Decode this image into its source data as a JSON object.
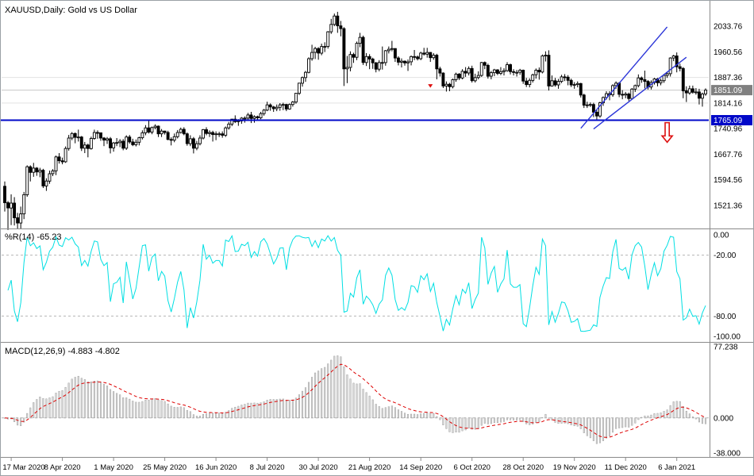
{
  "colors": {
    "background": "#ffffff",
    "border": "#9aa0a6",
    "text": "#000000",
    "separator": "#8a8a8a",
    "grid": "#e2e2e2",
    "current_price_line": "#c8c8c8",
    "candle": "#000000",
    "candle_up_fill": "#ffffff",
    "candle_down_fill": "#000000",
    "wpr_line": "#00dfe3",
    "level_dash": "#b4b4b4",
    "macd_hist_fill": "#d9d9d9",
    "macd_hist_stroke": "#9e9e9e",
    "macd_signal": "#dd0000",
    "object_blue": "#2b35d8",
    "hline_blue": "#0008c8",
    "price_tag_bg": "#808080",
    "price_tag_text": "#ffffff",
    "hline_tag_bg": "#0008c8",
    "arrow_red": "#dd1111"
  },
  "panels": {
    "price": {
      "title": "XAUUSD,Daily: Gold vs US Dollar",
      "axis_labels": [
        "2033.76",
        "1960.56",
        "1887.36",
        "1814.16",
        "1740.96",
        "1667.76",
        "1594.56",
        "1521.36"
      ],
      "current_price_label": "1851.09",
      "hline_label": "1765.09",
      "gridline_prices": [
        1887.36,
        1814.16
      ],
      "scale": {
        "min": 1457.6,
        "max": 2095.3
      }
    },
    "wpr": {
      "title": "%R(14) -65.23",
      "axis_labels": [
        "0.00",
        "-20.00",
        "-80.00",
        "-100.00"
      ],
      "levels": [
        -20,
        -80
      ],
      "scale": {
        "min": -100,
        "max": 0
      }
    },
    "macd": {
      "title": "MACD(12,26,9) -4.883 -4.802",
      "axis_labels": [
        "77.238",
        "0.000",
        "-38.000"
      ],
      "scale": {
        "min": -38.0,
        "max": 77.238
      }
    }
  },
  "time_axis": {
    "labels": [
      "17 Mar 2020",
      "8 Apr 2020",
      "1 May 2020",
      "25 May 2020",
      "16 Jun 2020",
      "8 Jul 2020",
      "30 Jul 2020",
      "21 Aug 2020",
      "14 Sep 2020",
      "6 Oct 2020",
      "28 Oct 2020",
      "19 Nov 2020",
      "11 Dec 2020",
      "6 Jan 2021"
    ],
    "label_indices": [
      2,
      18,
      34,
      50,
      66,
      82,
      98,
      114,
      130,
      146,
      162,
      178,
      194,
      210
    ]
  },
  "chart_data": {
    "type": "candlestick",
    "symbol": "XAUUSD",
    "timeframe": "Daily",
    "description": "Gold vs US Dollar",
    "ylim": [
      1457.6,
      2095.3
    ],
    "indicators": [
      {
        "name": "Williams %R",
        "period": 14,
        "current": -65.23,
        "range": [
          0,
          -100
        ],
        "levels": [
          -20,
          -80
        ]
      },
      {
        "name": "MACD",
        "params": [
          12,
          26,
          9
        ],
        "current_macd": -4.883,
        "current_signal": -4.802,
        "range": [
          77.238,
          -38.0
        ]
      }
    ],
    "candles_ohlc": [
      [
        1576,
        1590,
        1504,
        1529
      ],
      [
        1529,
        1534,
        1451,
        1514
      ],
      [
        1514,
        1553,
        1465,
        1528
      ],
      [
        1528,
        1545,
        1464,
        1486
      ],
      [
        1486,
        1500,
        1455,
        1471
      ],
      [
        1471,
        1518,
        1454,
        1497
      ],
      [
        1497,
        1560,
        1482,
        1552
      ],
      [
        1552,
        1636,
        1546,
        1632
      ],
      [
        1632,
        1636,
        1590,
        1616
      ],
      [
        1616,
        1643,
        1603,
        1628
      ],
      [
        1628,
        1631,
        1606,
        1617
      ],
      [
        1617,
        1629,
        1602,
        1622
      ],
      [
        1622,
        1626,
        1571,
        1577
      ],
      [
        1577,
        1599,
        1563,
        1591
      ],
      [
        1591,
        1621,
        1583,
        1612
      ],
      [
        1612,
        1625,
        1605,
        1620
      ],
      [
        1620,
        1664,
        1608,
        1660
      ],
      [
        1660,
        1671,
        1641,
        1649
      ],
      [
        1649,
        1658,
        1639,
        1646
      ],
      [
        1646,
        1690,
        1643,
        1684
      ],
      [
        1684,
        1723,
        1678,
        1714
      ],
      [
        1714,
        1731,
        1708,
        1727
      ],
      [
        1727,
        1730,
        1699,
        1716
      ],
      [
        1716,
        1738,
        1704,
        1717
      ],
      [
        1717,
        1720,
        1677,
        1685
      ],
      [
        1685,
        1703,
        1671,
        1694
      ],
      [
        1694,
        1698,
        1659,
        1684
      ],
      [
        1684,
        1718,
        1681,
        1713
      ],
      [
        1713,
        1738,
        1709,
        1730
      ],
      [
        1730,
        1736,
        1712,
        1729
      ],
      [
        1729,
        1730,
        1706,
        1714
      ],
      [
        1714,
        1717,
        1691,
        1708
      ],
      [
        1708,
        1717,
        1697,
        1712
      ],
      [
        1712,
        1717,
        1670,
        1686
      ],
      [
        1686,
        1703,
        1675,
        1700
      ],
      [
        1700,
        1714,
        1691,
        1701
      ],
      [
        1701,
        1711,
        1688,
        1705
      ],
      [
        1705,
        1711,
        1679,
        1685
      ],
      [
        1685,
        1722,
        1680,
        1717
      ],
      [
        1717,
        1723,
        1698,
        1703
      ],
      [
        1703,
        1712,
        1691,
        1695
      ],
      [
        1695,
        1710,
        1690,
        1702
      ],
      [
        1702,
        1718,
        1693,
        1715
      ],
      [
        1715,
        1736,
        1710,
        1729
      ],
      [
        1729,
        1751,
        1722,
        1743
      ],
      [
        1743,
        1765,
        1727,
        1731
      ],
      [
        1731,
        1747,
        1725,
        1744
      ],
      [
        1744,
        1753,
        1739,
        1748
      ],
      [
        1748,
        1750,
        1717,
        1726
      ],
      [
        1726,
        1740,
        1717,
        1734
      ],
      [
        1734,
        1735,
        1724,
        1730
      ],
      [
        1730,
        1735,
        1708,
        1710
      ],
      [
        1710,
        1716,
        1693,
        1708
      ],
      [
        1708,
        1727,
        1702,
        1718
      ],
      [
        1718,
        1737,
        1713,
        1730
      ],
      [
        1730,
        1744,
        1727,
        1739
      ],
      [
        1739,
        1745,
        1722,
        1726
      ],
      [
        1726,
        1730,
        1692,
        1698
      ],
      [
        1698,
        1722,
        1691,
        1712
      ],
      [
        1712,
        1717,
        1670,
        1685
      ],
      [
        1685,
        1706,
        1679,
        1698
      ],
      [
        1698,
        1722,
        1693,
        1714
      ],
      [
        1714,
        1740,
        1710,
        1738
      ],
      [
        1738,
        1745,
        1722,
        1727
      ],
      [
        1727,
        1736,
        1717,
        1730
      ],
      [
        1730,
        1735,
        1704,
        1724
      ],
      [
        1724,
        1733,
        1708,
        1726
      ],
      [
        1726,
        1732,
        1717,
        1726
      ],
      [
        1726,
        1733,
        1715,
        1722
      ],
      [
        1722,
        1747,
        1717,
        1743
      ],
      [
        1743,
        1760,
        1738,
        1754
      ],
      [
        1754,
        1769,
        1748,
        1768
      ],
      [
        1768,
        1779,
        1757,
        1761
      ],
      [
        1761,
        1768,
        1749,
        1763
      ],
      [
        1763,
        1774,
        1755,
        1771
      ],
      [
        1771,
        1776,
        1758,
        1771
      ],
      [
        1771,
        1786,
        1766,
        1780
      ],
      [
        1780,
        1789,
        1757,
        1770
      ],
      [
        1770,
        1779,
        1758,
        1775
      ],
      [
        1775,
        1778,
        1767,
        1772
      ],
      [
        1772,
        1789,
        1768,
        1784
      ],
      [
        1784,
        1797,
        1778,
        1794
      ],
      [
        1794,
        1818,
        1791,
        1809
      ],
      [
        1809,
        1813,
        1792,
        1803
      ],
      [
        1803,
        1806,
        1789,
        1798
      ],
      [
        1798,
        1810,
        1791,
        1802
      ],
      [
        1802,
        1814,
        1792,
        1809
      ],
      [
        1809,
        1815,
        1794,
        1810
      ],
      [
        1810,
        1812,
        1791,
        1797
      ],
      [
        1797,
        1813,
        1795,
        1810
      ],
      [
        1810,
        1820,
        1804,
        1817
      ],
      [
        1817,
        1843,
        1812,
        1842
      ],
      [
        1842,
        1872,
        1837,
        1871
      ],
      [
        1871,
        1890,
        1861,
        1887
      ],
      [
        1887,
        1906,
        1875,
        1902
      ],
      [
        1902,
        1945,
        1899,
        1941
      ],
      [
        1941,
        1981,
        1935,
        1959
      ],
      [
        1959,
        1975,
        1940,
        1970
      ],
      [
        1970,
        1974,
        1938,
        1957
      ],
      [
        1957,
        1984,
        1951,
        1976
      ],
      [
        1976,
        1988,
        1960,
        1976
      ],
      [
        1976,
        2020,
        1970,
        2018
      ],
      [
        2018,
        2055,
        2012,
        2039
      ],
      [
        2039,
        2070,
        2034,
        2063
      ],
      [
        2063,
        2075,
        2015,
        2035
      ],
      [
        2035,
        2049,
        2005,
        2027
      ],
      [
        2027,
        2031,
        1863,
        1912
      ],
      [
        1912,
        1949,
        1871,
        1916
      ],
      [
        1916,
        1962,
        1905,
        1953
      ],
      [
        1953,
        1958,
        1929,
        1945
      ],
      [
        1945,
        1990,
        1937,
        1985
      ],
      [
        1985,
        2015,
        1974,
        2002
      ],
      [
        2002,
        2007,
        1923,
        1930
      ],
      [
        1930,
        1957,
        1920,
        1947
      ],
      [
        1947,
        1954,
        1911,
        1940
      ],
      [
        1940,
        1944,
        1912,
        1929
      ],
      [
        1929,
        1932,
        1902,
        1911
      ],
      [
        1911,
        1937,
        1905,
        1930
      ],
      [
        1930,
        1976,
        1910,
        1930
      ],
      [
        1930,
        1966,
        1921,
        1964
      ],
      [
        1964,
        1976,
        1956,
        1968
      ],
      [
        1968,
        1992,
        1962,
        1970
      ],
      [
        1970,
        1971,
        1932,
        1943
      ],
      [
        1943,
        1948,
        1922,
        1931
      ],
      [
        1931,
        1942,
        1916,
        1934
      ],
      [
        1934,
        1936,
        1921,
        1929
      ],
      [
        1929,
        1939,
        1906,
        1932
      ],
      [
        1932,
        1950,
        1922,
        1947
      ],
      [
        1947,
        1966,
        1937,
        1946
      ],
      [
        1946,
        1950,
        1936,
        1941
      ],
      [
        1941,
        1961,
        1937,
        1957
      ],
      [
        1957,
        1972,
        1950,
        1954
      ],
      [
        1954,
        1972,
        1944,
        1959
      ],
      [
        1959,
        1960,
        1932,
        1944
      ],
      [
        1944,
        1957,
        1938,
        1951
      ],
      [
        1951,
        1955,
        1882,
        1912
      ],
      [
        1912,
        1918,
        1890,
        1900
      ],
      [
        1900,
        1902,
        1857,
        1863
      ],
      [
        1863,
        1876,
        1847,
        1868
      ],
      [
        1868,
        1872,
        1848,
        1861
      ],
      [
        1861,
        1884,
        1856,
        1881
      ],
      [
        1881,
        1901,
        1875,
        1897
      ],
      [
        1897,
        1900,
        1880,
        1886
      ],
      [
        1886,
        1911,
        1882,
        1905
      ],
      [
        1905,
        1917,
        1889,
        1900
      ],
      [
        1900,
        1919,
        1893,
        1913
      ],
      [
        1913,
        1921,
        1873,
        1878
      ],
      [
        1878,
        1898,
        1873,
        1887
      ],
      [
        1887,
        1905,
        1882,
        1893
      ],
      [
        1893,
        1932,
        1889,
        1930
      ],
      [
        1930,
        1933,
        1911,
        1922
      ],
      [
        1922,
        1927,
        1884,
        1891
      ],
      [
        1891,
        1906,
        1882,
        1901
      ],
      [
        1901,
        1912,
        1891,
        1909
      ],
      [
        1909,
        1911,
        1894,
        1899
      ],
      [
        1899,
        1917,
        1894,
        1904
      ],
      [
        1904,
        1914,
        1893,
        1907
      ],
      [
        1907,
        1931,
        1903,
        1924
      ],
      [
        1924,
        1927,
        1896,
        1904
      ],
      [
        1904,
        1911,
        1893,
        1902
      ],
      [
        1902,
        1909,
        1890,
        1902
      ],
      [
        1902,
        1912,
        1895,
        1908
      ],
      [
        1908,
        1910,
        1869,
        1877
      ],
      [
        1877,
        1886,
        1860,
        1867
      ],
      [
        1867,
        1885,
        1859,
        1879
      ],
      [
        1879,
        1898,
        1873,
        1895
      ],
      [
        1895,
        1913,
        1884,
        1908
      ],
      [
        1908,
        1916,
        1881,
        1903
      ],
      [
        1903,
        1953,
        1899,
        1949
      ],
      [
        1949,
        1962,
        1933,
        1951
      ],
      [
        1951,
        1965,
        1850,
        1863
      ],
      [
        1863,
        1893,
        1861,
        1878
      ],
      [
        1878,
        1886,
        1861,
        1866
      ],
      [
        1866,
        1883,
        1855,
        1876
      ],
      [
        1876,
        1895,
        1871,
        1889
      ],
      [
        1889,
        1897,
        1877,
        1888
      ],
      [
        1888,
        1894,
        1865,
        1879
      ],
      [
        1879,
        1884,
        1860,
        1866
      ],
      [
        1866,
        1874,
        1855,
        1867
      ],
      [
        1867,
        1876,
        1859,
        1870
      ],
      [
        1870,
        1872,
        1830,
        1837
      ],
      [
        1837,
        1841,
        1800,
        1808
      ],
      [
        1808,
        1818,
        1800,
        1809
      ],
      [
        1809,
        1816,
        1803,
        1810
      ],
      [
        1810,
        1815,
        1774,
        1788
      ],
      [
        1788,
        1795,
        1764,
        1777
      ],
      [
        1777,
        1818,
        1772,
        1815
      ],
      [
        1815,
        1833,
        1806,
        1830
      ],
      [
        1830,
        1848,
        1824,
        1841
      ],
      [
        1841,
        1848,
        1822,
        1838
      ],
      [
        1838,
        1868,
        1832,
        1864
      ],
      [
        1864,
        1876,
        1855,
        1871
      ],
      [
        1871,
        1874,
        1831,
        1839
      ],
      [
        1839,
        1851,
        1825,
        1837
      ],
      [
        1837,
        1846,
        1828,
        1840
      ],
      [
        1840,
        1844,
        1820,
        1827
      ],
      [
        1827,
        1857,
        1824,
        1854
      ],
      [
        1854,
        1867,
        1846,
        1864
      ],
      [
        1864,
        1896,
        1859,
        1886
      ],
      [
        1886,
        1890,
        1872,
        1881
      ],
      [
        1881,
        1907,
        1856,
        1876
      ],
      [
        1876,
        1880,
        1853,
        1860
      ],
      [
        1860,
        1879,
        1853,
        1873
      ],
      [
        1873,
        1886,
        1867,
        1883
      ],
      [
        1883,
        1886,
        1862,
        1872
      ],
      [
        1872,
        1884,
        1865,
        1878
      ],
      [
        1878,
        1897,
        1872,
        1893
      ],
      [
        1893,
        1902,
        1886,
        1898
      ],
      [
        1898,
        1945,
        1890,
        1943
      ],
      [
        1943,
        1952,
        1934,
        1949
      ],
      [
        1949,
        1959,
        1902,
        1918
      ],
      [
        1918,
        1927,
        1905,
        1913
      ],
      [
        1913,
        1917,
        1828,
        1849
      ],
      [
        1849,
        1862,
        1817,
        1843
      ],
      [
        1843,
        1864,
        1838,
        1855
      ],
      [
        1855,
        1864,
        1841,
        1845
      ],
      [
        1845,
        1857,
        1838,
        1846
      ],
      [
        1846,
        1855,
        1810,
        1828
      ],
      [
        1828,
        1844,
        1804,
        1840
      ],
      [
        1840,
        1856,
        1835,
        1851
      ]
    ],
    "annotations": {
      "hline": {
        "price": 1765.09
      },
      "trendlines": [
        {
          "from": [
            180,
            1742
          ],
          "to": [
            207,
            2032
          ]
        },
        {
          "from": [
            184,
            1740
          ],
          "to": [
            213,
            1945
          ]
        }
      ],
      "arrow_down": {
        "index": 207,
        "price_top": 1758,
        "price_bottom": 1702
      },
      "mark": {
        "index": 133,
        "price": 1868
      }
    }
  }
}
